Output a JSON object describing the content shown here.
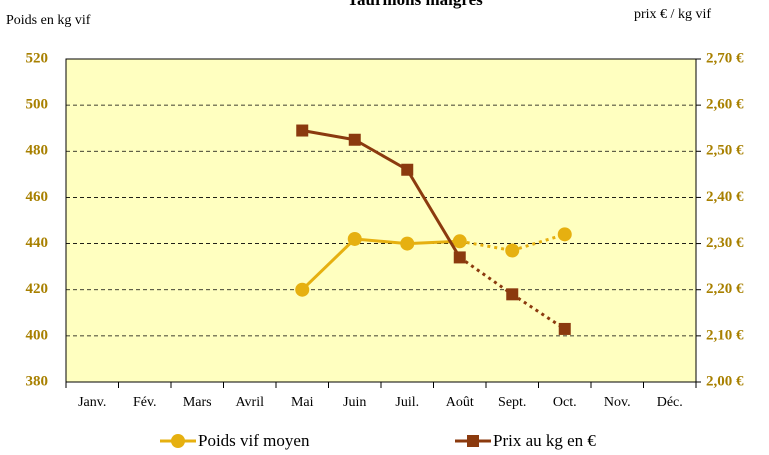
{
  "chart_data": {
    "type": "line",
    "title": "Taurillons maigres",
    "ylabel": "Poids en kg vif",
    "y2label": "prix € / kg vif",
    "categories": [
      "Janv.",
      "Fév.",
      "Mars",
      "Avril",
      "Mai",
      "Juin",
      "Juil.",
      "Août",
      "Sept.",
      "Oct.",
      "Nov.",
      "Déc."
    ],
    "series": [
      {
        "name": "Poids vif moyen",
        "color": "#e6b010",
        "marker": "circle",
        "values": [
          null,
          null,
          null,
          null,
          420,
          442,
          440,
          441,
          437,
          444,
          null,
          null
        ]
      },
      {
        "name": "Prix au kg en €",
        "color": "#8b3a0e",
        "marker": "square",
        "axis": "y2",
        "values": [
          null,
          null,
          null,
          null,
          2.545,
          2.525,
          2.46,
          2.27,
          2.19,
          2.115,
          null,
          null
        ]
      }
    ],
    "dashed_from": 7,
    "ylim": [
      380,
      520
    ],
    "yticks": [
      380,
      400,
      420,
      440,
      460,
      480,
      500,
      520
    ],
    "y2lim": [
      2.0,
      2.7
    ],
    "y2ticks": [
      {
        "value": 2.0,
        "label": "2,00 €"
      },
      {
        "value": 2.1,
        "label": "2,10 €"
      },
      {
        "value": 2.2,
        "label": "2,20 €"
      },
      {
        "value": 2.3,
        "label": "2,30 €"
      },
      {
        "value": 2.4,
        "label": "2,40 €"
      },
      {
        "value": 2.5,
        "label": "2,50 €"
      },
      {
        "value": 2.6,
        "label": "2,60 €"
      },
      {
        "value": 2.7,
        "label": "2,70 €"
      }
    ],
    "grid": true,
    "legend": "bottom",
    "background": "#ffffc0"
  }
}
